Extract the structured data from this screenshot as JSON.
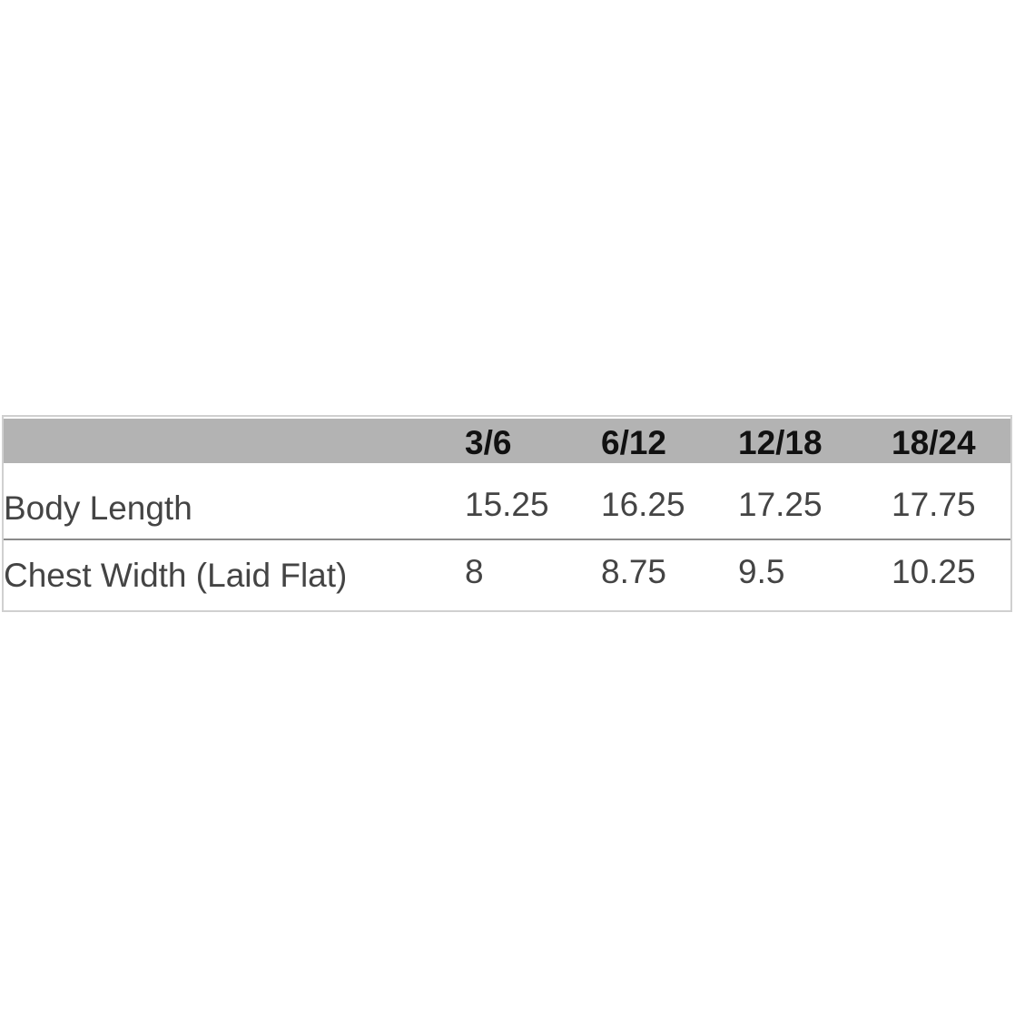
{
  "table": {
    "columns": [
      "3/6",
      "6/12",
      "12/18",
      "18/24"
    ],
    "rows": [
      {
        "label": "Body Length",
        "values": [
          15.25,
          16.25,
          17.25,
          17.75
        ]
      },
      {
        "label": "Chest Width (Laid Flat)",
        "values": [
          8,
          8.75,
          9.5,
          10.25
        ]
      }
    ]
  }
}
